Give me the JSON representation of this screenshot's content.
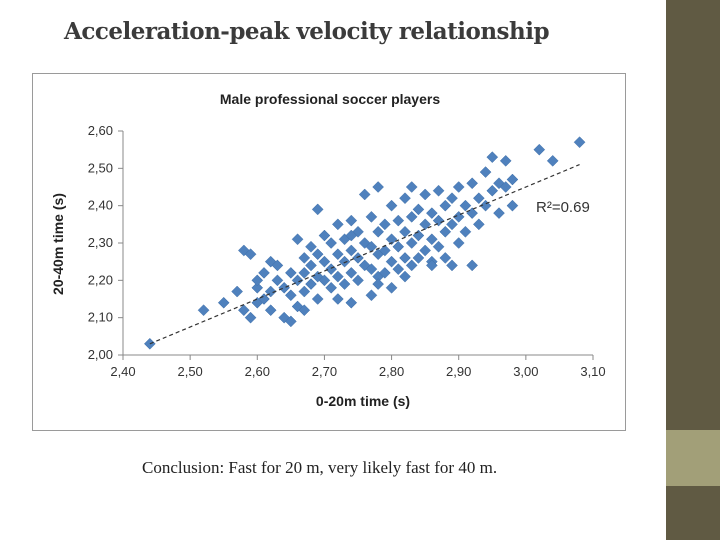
{
  "slide": {
    "title": "Acceleration-peak velocity relationship",
    "conclusion": "Conclusion:  Fast for 20 m, very likely fast for 40 m.",
    "colors": {
      "sidebar_dark": "#605a43",
      "sidebar_light": "#a29f78",
      "marker": "#4f81bd",
      "trendline": "#333333"
    }
  },
  "chart_data": {
    "type": "scatter",
    "title": "Male professional soccer players",
    "xlabel": "0-20m time (s)",
    "ylabel": "20-40m time (s)",
    "xlim": [
      2.4,
      3.1
    ],
    "ylim": [
      2.0,
      2.6
    ],
    "xticks": [
      "2,40",
      "2,50",
      "2,60",
      "2,70",
      "2,80",
      "2,90",
      "3,00",
      "3,10"
    ],
    "yticks": [
      "2,00",
      "2,10",
      "2,20",
      "2,30",
      "2,40",
      "2,50",
      "2,60"
    ],
    "annotation": "R²=0.69",
    "grid": false,
    "legend": false,
    "trendline": {
      "x": [
        2.44,
        3.08
      ],
      "y": [
        2.03,
        2.51
      ]
    },
    "points": [
      [
        2.44,
        2.03
      ],
      [
        2.52,
        2.12
      ],
      [
        2.55,
        2.14
      ],
      [
        2.57,
        2.17
      ],
      [
        2.58,
        2.28
      ],
      [
        2.58,
        2.12
      ],
      [
        2.59,
        2.27
      ],
      [
        2.59,
        2.1
      ],
      [
        2.6,
        2.18
      ],
      [
        2.6,
        2.14
      ],
      [
        2.61,
        2.22
      ],
      [
        2.61,
        2.15
      ],
      [
        2.62,
        2.25
      ],
      [
        2.62,
        2.17
      ],
      [
        2.62,
        2.12
      ],
      [
        2.63,
        2.2
      ],
      [
        2.63,
        2.24
      ],
      [
        2.64,
        2.18
      ],
      [
        2.64,
        2.1
      ],
      [
        2.65,
        2.22
      ],
      [
        2.65,
        2.16
      ],
      [
        2.66,
        2.31
      ],
      [
        2.66,
        2.2
      ],
      [
        2.66,
        2.13
      ],
      [
        2.67,
        2.26
      ],
      [
        2.67,
        2.22
      ],
      [
        2.67,
        2.17
      ],
      [
        2.68,
        2.29
      ],
      [
        2.68,
        2.24
      ],
      [
        2.68,
        2.19
      ],
      [
        2.69,
        2.39
      ],
      [
        2.69,
        2.27
      ],
      [
        2.69,
        2.21
      ],
      [
        2.69,
        2.15
      ],
      [
        2.7,
        2.32
      ],
      [
        2.7,
        2.25
      ],
      [
        2.7,
        2.2
      ],
      [
        2.71,
        2.3
      ],
      [
        2.71,
        2.23
      ],
      [
        2.71,
        2.18
      ],
      [
        2.72,
        2.35
      ],
      [
        2.72,
        2.27
      ],
      [
        2.72,
        2.21
      ],
      [
        2.73,
        2.31
      ],
      [
        2.73,
        2.25
      ],
      [
        2.73,
        2.19
      ],
      [
        2.74,
        2.36
      ],
      [
        2.74,
        2.28
      ],
      [
        2.74,
        2.22
      ],
      [
        2.74,
        2.14
      ],
      [
        2.75,
        2.33
      ],
      [
        2.75,
        2.26
      ],
      [
        2.75,
        2.2
      ],
      [
        2.76,
        2.43
      ],
      [
        2.76,
        2.3
      ],
      [
        2.76,
        2.24
      ],
      [
        2.77,
        2.37
      ],
      [
        2.77,
        2.29
      ],
      [
        2.77,
        2.23
      ],
      [
        2.77,
        2.16
      ],
      [
        2.78,
        2.45
      ],
      [
        2.78,
        2.33
      ],
      [
        2.78,
        2.27
      ],
      [
        2.78,
        2.21
      ],
      [
        2.79,
        2.35
      ],
      [
        2.79,
        2.28
      ],
      [
        2.79,
        2.22
      ],
      [
        2.8,
        2.4
      ],
      [
        2.8,
        2.31
      ],
      [
        2.8,
        2.25
      ],
      [
        2.8,
        2.18
      ],
      [
        2.81,
        2.36
      ],
      [
        2.81,
        2.29
      ],
      [
        2.81,
        2.23
      ],
      [
        2.82,
        2.42
      ],
      [
        2.82,
        2.33
      ],
      [
        2.82,
        2.26
      ],
      [
        2.83,
        2.45
      ],
      [
        2.83,
        2.37
      ],
      [
        2.83,
        2.3
      ],
      [
        2.83,
        2.24
      ],
      [
        2.84,
        2.39
      ],
      [
        2.84,
        2.32
      ],
      [
        2.84,
        2.26
      ],
      [
        2.85,
        2.43
      ],
      [
        2.85,
        2.35
      ],
      [
        2.85,
        2.28
      ],
      [
        2.86,
        2.38
      ],
      [
        2.86,
        2.31
      ],
      [
        2.86,
        2.25
      ],
      [
        2.87,
        2.44
      ],
      [
        2.87,
        2.36
      ],
      [
        2.87,
        2.29
      ],
      [
        2.88,
        2.4
      ],
      [
        2.88,
        2.33
      ],
      [
        2.88,
        2.26
      ],
      [
        2.89,
        2.42
      ],
      [
        2.89,
        2.35
      ],
      [
        2.89,
        2.24
      ],
      [
        2.9,
        2.45
      ],
      [
        2.9,
        2.37
      ],
      [
        2.9,
        2.3
      ],
      [
        2.91,
        2.4
      ],
      [
        2.91,
        2.33
      ],
      [
        2.92,
        2.46
      ],
      [
        2.92,
        2.38
      ],
      [
        2.93,
        2.42
      ],
      [
        2.93,
        2.35
      ],
      [
        2.94,
        2.49
      ],
      [
        2.94,
        2.4
      ],
      [
        2.95,
        2.53
      ],
      [
        2.95,
        2.44
      ],
      [
        2.96,
        2.46
      ],
      [
        2.96,
        2.38
      ],
      [
        2.97,
        2.52
      ],
      [
        2.97,
        2.45
      ],
      [
        2.98,
        2.47
      ],
      [
        2.98,
        2.4
      ],
      [
        3.02,
        2.55
      ],
      [
        3.04,
        2.52
      ],
      [
        3.08,
        2.57
      ],
      [
        2.86,
        2.24
      ],
      [
        2.92,
        2.24
      ],
      [
        2.72,
        2.15
      ],
      [
        2.67,
        2.12
      ],
      [
        2.65,
        2.09
      ],
      [
        2.6,
        2.2
      ],
      [
        2.78,
        2.19
      ],
      [
        2.82,
        2.21
      ],
      [
        2.74,
        2.32
      ]
    ]
  }
}
